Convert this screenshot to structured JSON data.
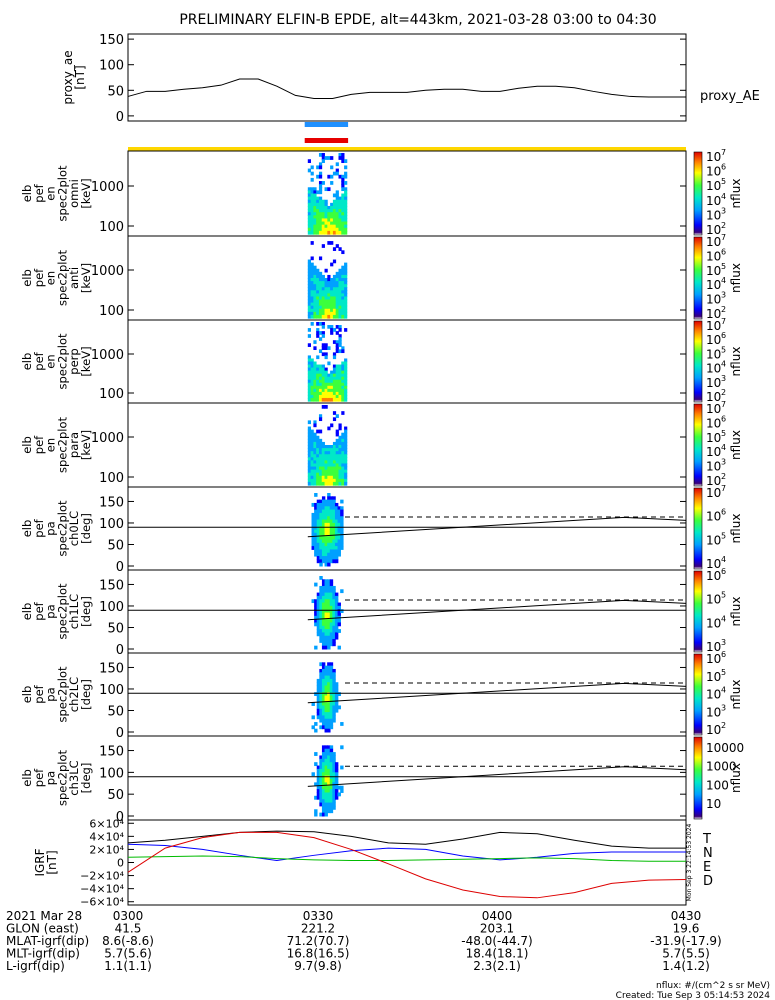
{
  "title": "PRELIMINARY ELFIN-B EPDE, alt=443km, 2021-03-28 03:00 to 04:30",
  "colors": {
    "ae_line": "#000000",
    "bar_blue": "#1e90ff",
    "bar_red": "#e60000",
    "bar_yellow": "#ffd700",
    "grf_t": "#000000",
    "grf_n": "#0000ff",
    "grf_e": "#00bb00",
    "grf_d": "#dd0000"
  },
  "colorbar_ticks": [
    "10",
    "10",
    "10",
    "10",
    "10",
    "10",
    "10",
    "10"
  ],
  "chart_data": [
    {
      "type": "line",
      "ylabel": "proxy_ae\n[nT]",
      "ylabel_lines": [
        "proxy_ae",
        "[nT]"
      ],
      "yticks": [
        "150",
        "100",
        "50",
        "0"
      ],
      "ylim": [
        -10,
        160
      ],
      "legend": "proxy_AE",
      "x_minutes": [
        0,
        3,
        6,
        9,
        12,
        15,
        18,
        21,
        24,
        27,
        30,
        33,
        36,
        39,
        42,
        45,
        48,
        51,
        54,
        57,
        60,
        63,
        66,
        69,
        72,
        75,
        78,
        81,
        84,
        87,
        90
      ],
      "values": [
        38,
        48,
        48,
        52,
        55,
        60,
        72,
        72,
        58,
        40,
        34,
        34,
        42,
        46,
        46,
        46,
        50,
        52,
        52,
        48,
        48,
        54,
        58,
        58,
        55,
        48,
        42,
        38,
        37,
        37,
        37
      ]
    },
    {
      "type": "heatmap",
      "ylabel_lines": [
        "elb",
        "pef",
        "en",
        "spec2plot",
        "omni",
        "[keV]"
      ],
      "yticks": [
        "1000",
        "100"
      ],
      "cbar_label": "nflux",
      "cbar_exps": [
        "7",
        "6",
        "5",
        "4",
        "3",
        "2"
      ]
    },
    {
      "type": "heatmap",
      "ylabel_lines": [
        "elb",
        "pef",
        "en",
        "spec2plot",
        "anti",
        "[keV]"
      ],
      "yticks": [
        "1000",
        "100"
      ],
      "cbar_label": "nflux",
      "cbar_exps": [
        "7",
        "6",
        "5",
        "4",
        "3",
        "2"
      ]
    },
    {
      "type": "heatmap",
      "ylabel_lines": [
        "elb",
        "pef",
        "en",
        "spec2plot",
        "perp",
        "[keV]"
      ],
      "yticks": [
        "1000",
        "100"
      ],
      "cbar_label": "nflux",
      "cbar_exps": [
        "7",
        "6",
        "5",
        "4",
        "3",
        "2"
      ]
    },
    {
      "type": "heatmap",
      "ylabel_lines": [
        "elb",
        "pef",
        "en",
        "spec2plot",
        "para",
        "[keV]"
      ],
      "yticks": [
        "1000",
        "100"
      ],
      "cbar_label": "nflux",
      "cbar_exps": [
        "7",
        "6",
        "5",
        "4",
        "3",
        "2"
      ]
    },
    {
      "type": "heatmap",
      "ylabel_lines": [
        "elb",
        "pef",
        "pa",
        "spec2plot",
        "ch0LC",
        "[deg]"
      ],
      "yticks": [
        "150",
        "100",
        "50",
        "0"
      ],
      "cbar_label": "nflux",
      "cbar_exps": [
        "7",
        "6",
        "5",
        "4"
      ]
    },
    {
      "type": "heatmap",
      "ylabel_lines": [
        "elb",
        "pef",
        "pa",
        "spec2plot",
        "ch1LC",
        "[deg]"
      ],
      "yticks": [
        "150",
        "100",
        "50",
        "0"
      ],
      "cbar_label": "nflux",
      "cbar_exps": [
        "6",
        "5",
        "4",
        "3"
      ]
    },
    {
      "type": "heatmap",
      "ylabel_lines": [
        "elb",
        "pef",
        "pa",
        "spec2plot",
        "ch2LC",
        "[deg]"
      ],
      "yticks": [
        "150",
        "100",
        "50",
        "0"
      ],
      "cbar_label": "nflux",
      "cbar_exps": [
        "6",
        "5",
        "4",
        "3",
        "2"
      ]
    },
    {
      "type": "heatmap",
      "ylabel_lines": [
        "elb",
        "pef",
        "pa",
        "spec2plot",
        "ch3LC",
        "[deg]"
      ],
      "yticks": [
        "150",
        "100",
        "50",
        "0"
      ],
      "cbar_label": "nflux",
      "cbar_ticks": [
        "10000",
        "1000",
        "100",
        "10"
      ]
    },
    {
      "type": "line",
      "ylabel_lines": [
        "IGRF",
        "[nT]"
      ],
      "yticks": [
        "6×10⁴",
        "4×10⁴",
        "2×10⁴",
        "0",
        "−2×10⁴",
        "−4×10⁴",
        "−6×10⁴"
      ],
      "ylim": [
        -65000,
        65000
      ],
      "x_minutes": [
        0,
        6,
        12,
        18,
        24,
        30,
        36,
        42,
        48,
        54,
        60,
        66,
        72,
        78,
        84,
        90
      ],
      "series": [
        {
          "name": "T",
          "values": [
            30000,
            34000,
            40000,
            46000,
            48000,
            47000,
            40000,
            30000,
            28000,
            36000,
            46000,
            44000,
            34000,
            25000,
            22000,
            22000
          ]
        },
        {
          "name": "N",
          "values": [
            28000,
            26000,
            20000,
            11000,
            3000,
            11000,
            18000,
            22000,
            20000,
            10000,
            4000,
            8000,
            14000,
            16000,
            16000,
            16000
          ]
        },
        {
          "name": "E",
          "values": [
            8000,
            9000,
            10000,
            9000,
            6000,
            4000,
            3000,
            3000,
            4000,
            5000,
            6000,
            7000,
            6000,
            3000,
            2000,
            2000
          ]
        },
        {
          "name": "D",
          "values": [
            -15000,
            22000,
            38000,
            46000,
            46000,
            38000,
            20000,
            -2000,
            -25000,
            -42000,
            -52000,
            -54000,
            -46000,
            -32000,
            -27000,
            -26000
          ]
        }
      ]
    }
  ],
  "side_stamp": "Mon Sep  3 22:14:53 2024",
  "footer": {
    "rows": [
      {
        "label": "2021 Mar 28",
        "values": [
          "0300",
          "0330",
          "0400",
          "0430"
        ]
      },
      {
        "label": "GLON (east)",
        "values": [
          "41.5",
          "221.2",
          "203.1",
          "19.6"
        ]
      },
      {
        "label": "MLAT-igrf(dip)",
        "values": [
          "8.6(-8.6)",
          "71.2(70.7)",
          "-48.0(-44.7)",
          "-31.9(-17.9)"
        ]
      },
      {
        "label": "MLT-igrf(dip)",
        "values": [
          "5.7(5.6)",
          "16.8(16.5)",
          "18.4(18.1)",
          "5.7(5.5)"
        ]
      },
      {
        "label": "L-igrf(dip)",
        "values": [
          "1.1(1.1)",
          "9.7(9.8)",
          "2.3(2.1)",
          "1.4(1.2)"
        ]
      }
    ],
    "nflux_note": "nflux: #/(cm^2 s sr MeV)",
    "created": "Created: Tue Sep  3 05:14:53 2024"
  }
}
